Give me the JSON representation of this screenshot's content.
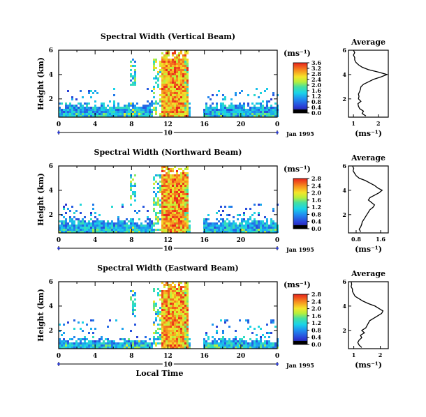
{
  "chart_data": [
    {
      "type": "heatmap",
      "title": "Spectral Width (Vertical Beam)",
      "ylabel": "Height (km)",
      "xlabel": "",
      "x_ticks": [
        "0",
        "4",
        "8",
        "12",
        "16",
        "20",
        "0"
      ],
      "y_ticks": [
        "2",
        "4",
        "6"
      ],
      "xlim": [
        0,
        24
      ],
      "ylim": [
        0.5,
        6.0
      ],
      "day_label": "10",
      "date_label": "Jan 1995",
      "colorbar": {
        "unit": "(ms⁻¹)",
        "ticks": [
          "0.0",
          "0.4",
          "0.8",
          "1.2",
          "1.6",
          "2.0",
          "2.4",
          "2.8",
          "3.2",
          "3.6"
        ],
        "range": [
          0,
          3.6
        ]
      },
      "summary": "Broadband enhanced spectral width (2.4–3.6 ms⁻¹) between ~11 and ~14 LT up to 6 km; background 0.4–1.2 ms⁻¹ below ~2 km.",
      "profile": {
        "title": "Average",
        "xlabel": "(ms⁻¹)",
        "x_ticks": [
          "1",
          "2"
        ],
        "xlim": [
          0.8,
          2.4
        ],
        "y_ticks": [
          "2",
          "4",
          "6"
        ],
        "ylim": [
          0.5,
          6.0
        ],
        "heights": [
          0.6,
          0.8,
          1.0,
          1.2,
          1.4,
          1.6,
          1.8,
          2.0,
          2.2,
          2.4,
          2.6,
          2.8,
          3.0,
          3.2,
          3.4,
          3.6,
          3.8,
          4.0,
          4.2,
          4.4,
          4.6,
          4.8,
          5.0,
          5.2,
          5.4,
          5.6,
          5.8,
          6.0
        ],
        "values": [
          1.5,
          1.35,
          1.4,
          1.25,
          1.2,
          1.18,
          1.3,
          1.2,
          1.22,
          1.2,
          1.25,
          1.28,
          1.3,
          1.4,
          1.6,
          1.8,
          2.1,
          2.35,
          2.0,
          1.6,
          1.35,
          1.2,
          1.1,
          1.05,
          1.05,
          1.0,
          1.05,
          1.0
        ]
      }
    },
    {
      "type": "heatmap",
      "title": "Spectral Width (Northward Beam)",
      "ylabel": "Height (km)",
      "xlabel": "",
      "x_ticks": [
        "0",
        "4",
        "8",
        "12",
        "16",
        "20",
        "0"
      ],
      "y_ticks": [
        "2",
        "4",
        "6"
      ],
      "xlim": [
        0,
        24
      ],
      "ylim": [
        0.5,
        6.0
      ],
      "day_label": "10",
      "date_label": "Jan 1995",
      "colorbar": {
        "unit": "(ms⁻¹)",
        "ticks": [
          "0.0",
          "0.4",
          "0.8",
          "1.2",
          "1.6",
          "2.0",
          "2.4",
          "2.8"
        ],
        "range": [
          0,
          2.8
        ]
      },
      "summary": "Enhanced spectral width (2.0–2.8 ms⁻¹) between ~11 and ~14 LT up to 6 km; background 0.4–0.8 ms⁻¹ below ~2 km.",
      "profile": {
        "title": "Average",
        "xlabel": "(ms⁻¹)",
        "x_ticks": [
          "0.8",
          "1.6"
        ],
        "xlim": [
          0.55,
          1.85
        ],
        "y_ticks": [
          "2",
          "4",
          "6"
        ],
        "ylim": [
          0.5,
          6.0
        ],
        "heights": [
          0.6,
          0.8,
          1.0,
          1.2,
          1.4,
          1.6,
          1.8,
          2.0,
          2.2,
          2.4,
          2.6,
          2.8,
          3.0,
          3.2,
          3.4,
          3.6,
          3.8,
          4.0,
          4.2,
          4.4,
          4.6,
          4.8,
          5.0,
          5.2,
          5.4,
          5.6,
          5.8,
          6.0
        ],
        "values": [
          0.95,
          0.9,
          0.95,
          0.98,
          1.0,
          1.05,
          1.1,
          1.15,
          1.2,
          1.25,
          1.35,
          1.4,
          1.3,
          1.2,
          1.25,
          1.4,
          1.55,
          1.65,
          1.5,
          1.4,
          1.25,
          1.1,
          0.9,
          0.8,
          0.75,
          0.7,
          0.72,
          0.68
        ]
      }
    },
    {
      "type": "heatmap",
      "title": "Spectral Width (Eastward Beam)",
      "ylabel": "Height (km)",
      "xlabel": "Local Time",
      "x_ticks": [
        "0",
        "4",
        "8",
        "12",
        "16",
        "20",
        "0"
      ],
      "y_ticks": [
        "2",
        "4",
        "6"
      ],
      "xlim": [
        0,
        24
      ],
      "ylim": [
        0.5,
        6.0
      ],
      "day_label": "10",
      "date_label": "Jan 1995",
      "colorbar": {
        "unit": "(ms⁻¹)",
        "ticks": [
          "0.0",
          "0.4",
          "0.8",
          "1.2",
          "1.6",
          "2.0",
          "2.4",
          "2.8"
        ],
        "range": [
          0,
          2.8
        ]
      },
      "summary": "Enhanced spectral width (2.4–2.8 ms⁻¹) between ~11 and ~14 LT up to 6 km; background 0.4–0.8 ms⁻¹ below ~1.5 km.",
      "profile": {
        "title": "Average",
        "xlabel": "(ms⁻¹)",
        "x_ticks": [
          "1",
          "2"
        ],
        "xlim": [
          0.8,
          2.3
        ],
        "y_ticks": [
          "2",
          "4",
          "6"
        ],
        "ylim": [
          0.5,
          6.0
        ],
        "heights": [
          0.6,
          0.8,
          1.0,
          1.2,
          1.4,
          1.6,
          1.8,
          2.0,
          2.2,
          2.4,
          2.6,
          2.8,
          3.0,
          3.2,
          3.4,
          3.6,
          3.8,
          4.0,
          4.2,
          4.4,
          4.6,
          4.8,
          5.0,
          5.2,
          5.4,
          5.6,
          5.8,
          6.0
        ],
        "values": [
          1.3,
          1.2,
          1.15,
          1.2,
          1.3,
          1.25,
          1.4,
          1.3,
          1.45,
          1.5,
          1.55,
          1.6,
          1.75,
          1.9,
          2.05,
          2.1,
          1.95,
          1.8,
          1.55,
          1.35,
          1.2,
          1.05,
          1.0,
          0.95,
          0.95,
          0.9,
          0.92,
          0.9
        ]
      }
    }
  ]
}
